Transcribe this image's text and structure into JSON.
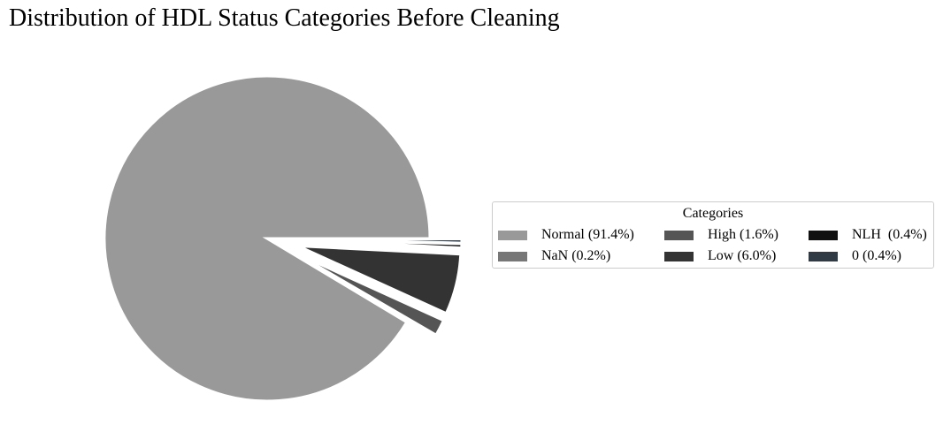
{
  "chart_data": {
    "type": "pie",
    "title": "Distribution of HDL Status Categories Before Cleaning",
    "legend": {
      "title": "Categories",
      "placement": "right",
      "columns": 3
    },
    "slices": [
      {
        "label": "Normal",
        "percent": 91.4,
        "color": "#999999",
        "legend_text": "Normal (91.4%)"
      },
      {
        "label": "NaN",
        "percent": 0.2,
        "color": "#777777",
        "legend_text": "NaN (0.2%)"
      },
      {
        "label": "High",
        "percent": 1.6,
        "color": "#555555",
        "legend_text": "High (1.6%)"
      },
      {
        "label": "Low",
        "percent": 6.0,
        "color": "#333333",
        "legend_text": "Low (6.0%)"
      },
      {
        "label": "NLH ",
        "percent": 0.4,
        "color": "#111111",
        "legend_text": "NLH  (0.4%)"
      },
      {
        "label": "0",
        "percent": 0.4,
        "color": "#2f3a44",
        "legend_text": "0 (0.4%)"
      }
    ]
  }
}
